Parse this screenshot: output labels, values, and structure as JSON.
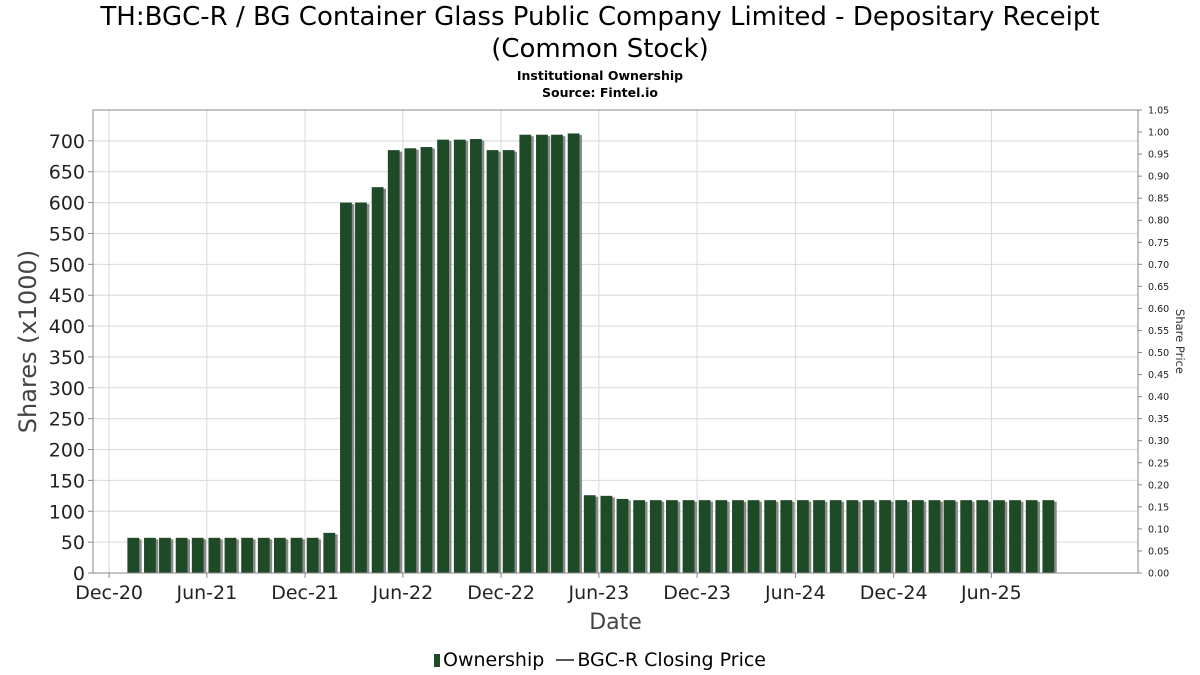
{
  "title_line1": "TH:BGC-R / BG Container Glass Public Company Limited - Depositary Receipt",
  "title_line2": "(Common Stock)",
  "subtitle_line1": "Institutional Ownership",
  "subtitle_line2": "Source: Fintel.io",
  "legend": {
    "ownership_label": "Ownership",
    "price_label": "BGC-R Closing Price"
  },
  "colors": {
    "bar": "#1f4a28",
    "bar_shadow": "#8a8a8a",
    "grid": "#d9d9d9",
    "axis": "#888888"
  },
  "chart_data": {
    "type": "bar",
    "xlabel": "Date",
    "ylabel": "Shares (x1000)",
    "y2label": "Share Price",
    "ylim": [
      0,
      750
    ],
    "y2lim": [
      0,
      1.05
    ],
    "grid": true,
    "legend_position": "bottom-center",
    "x_start": "2020-11-01",
    "x_end": "2026-03-01",
    "x_ticks": [
      {
        "label": "Dec-20",
        "date": "2020-12-01"
      },
      {
        "label": "Jun-21",
        "date": "2021-06-01"
      },
      {
        "label": "Dec-21",
        "date": "2021-12-01"
      },
      {
        "label": "Jun-22",
        "date": "2022-06-01"
      },
      {
        "label": "Dec-22",
        "date": "2022-12-01"
      },
      {
        "label": "Jun-23",
        "date": "2023-06-01"
      },
      {
        "label": "Dec-23",
        "date": "2023-12-01"
      },
      {
        "label": "Jun-24",
        "date": "2024-06-01"
      },
      {
        "label": "Dec-24",
        "date": "2024-12-01"
      },
      {
        "label": "Jun-25",
        "date": "2025-06-01"
      }
    ],
    "y_ticks": [
      0,
      50,
      100,
      150,
      200,
      250,
      300,
      350,
      400,
      450,
      500,
      550,
      600,
      650,
      700
    ],
    "y2_ticks": [
      "0.00",
      "0.05",
      "0.10",
      "0.15",
      "0.20",
      "0.25",
      "0.30",
      "0.35",
      "0.40",
      "0.45",
      "0.50",
      "0.55",
      "0.60",
      "0.65",
      "0.70",
      "0.75",
      "0.80",
      "0.85",
      "0.90",
      "0.95",
      "1.00",
      "1.05"
    ],
    "series": [
      {
        "name": "Ownership",
        "x": [
          "2021-01-15",
          "2021-02-15",
          "2021-03-15",
          "2021-04-15",
          "2021-05-15",
          "2021-06-15",
          "2021-07-15",
          "2021-08-15",
          "2021-09-15",
          "2021-10-15",
          "2021-11-15",
          "2021-12-15",
          "2022-01-15",
          "2022-02-15",
          "2022-03-15",
          "2022-04-15",
          "2022-05-15",
          "2022-06-15",
          "2022-07-15",
          "2022-08-15",
          "2022-09-15",
          "2022-10-15",
          "2022-11-15",
          "2022-12-15",
          "2023-01-15",
          "2023-02-15",
          "2023-03-15",
          "2023-04-15",
          "2023-05-15",
          "2023-06-15",
          "2023-07-15",
          "2023-08-15",
          "2023-09-15",
          "2023-10-15",
          "2023-11-15",
          "2023-12-15",
          "2024-01-15",
          "2024-02-15",
          "2024-03-15",
          "2024-04-15",
          "2024-05-15",
          "2024-06-15",
          "2024-07-15",
          "2024-08-15",
          "2024-09-15",
          "2024-10-15",
          "2024-11-15",
          "2024-12-15",
          "2025-01-15",
          "2025-02-15",
          "2025-03-15",
          "2025-04-15",
          "2025-05-15",
          "2025-06-15",
          "2025-07-15",
          "2025-08-15",
          "2025-09-15"
        ],
        "values": [
          57,
          57,
          57,
          57,
          57,
          57,
          57,
          57,
          57,
          57,
          57,
          57,
          65,
          600,
          600,
          625,
          685,
          688,
          690,
          702,
          702,
          703,
          685,
          685,
          710,
          710,
          710,
          712,
          126,
          125,
          120,
          118,
          118,
          118,
          118,
          118,
          118,
          118,
          118,
          118,
          118,
          118,
          118,
          118,
          118,
          118,
          118,
          118,
          118,
          118,
          118,
          118,
          118,
          118,
          118,
          118,
          118
        ]
      }
    ]
  }
}
